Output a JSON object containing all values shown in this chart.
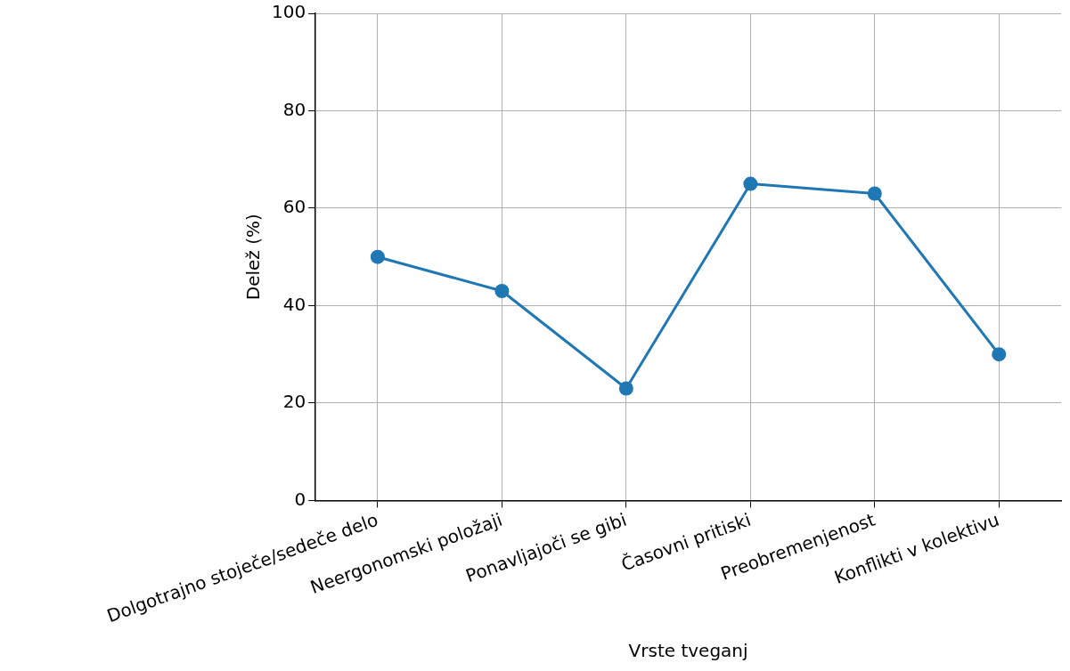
{
  "chart_data": {
    "type": "line",
    "xlabel": "Vrste tveganj",
    "ylabel": "Delež (%)",
    "categories": [
      "Dolgotrajno stoječe/sedeče delo",
      "Neergonomski položaji",
      "Ponavljajoči se gibi",
      "Časovni pritiski",
      "Preobremenjenost",
      "Konflikti v kolektivu"
    ],
    "series": [
      {
        "color": "#1f77b4",
        "values": [
          50,
          43,
          23,
          65,
          63,
          30
        ]
      }
    ],
    "ylim": [
      0,
      100
    ],
    "yticks": [
      0,
      20,
      40,
      60,
      80,
      100
    ],
    "grid": true,
    "marker": "circle",
    "line_style": "solid"
  }
}
